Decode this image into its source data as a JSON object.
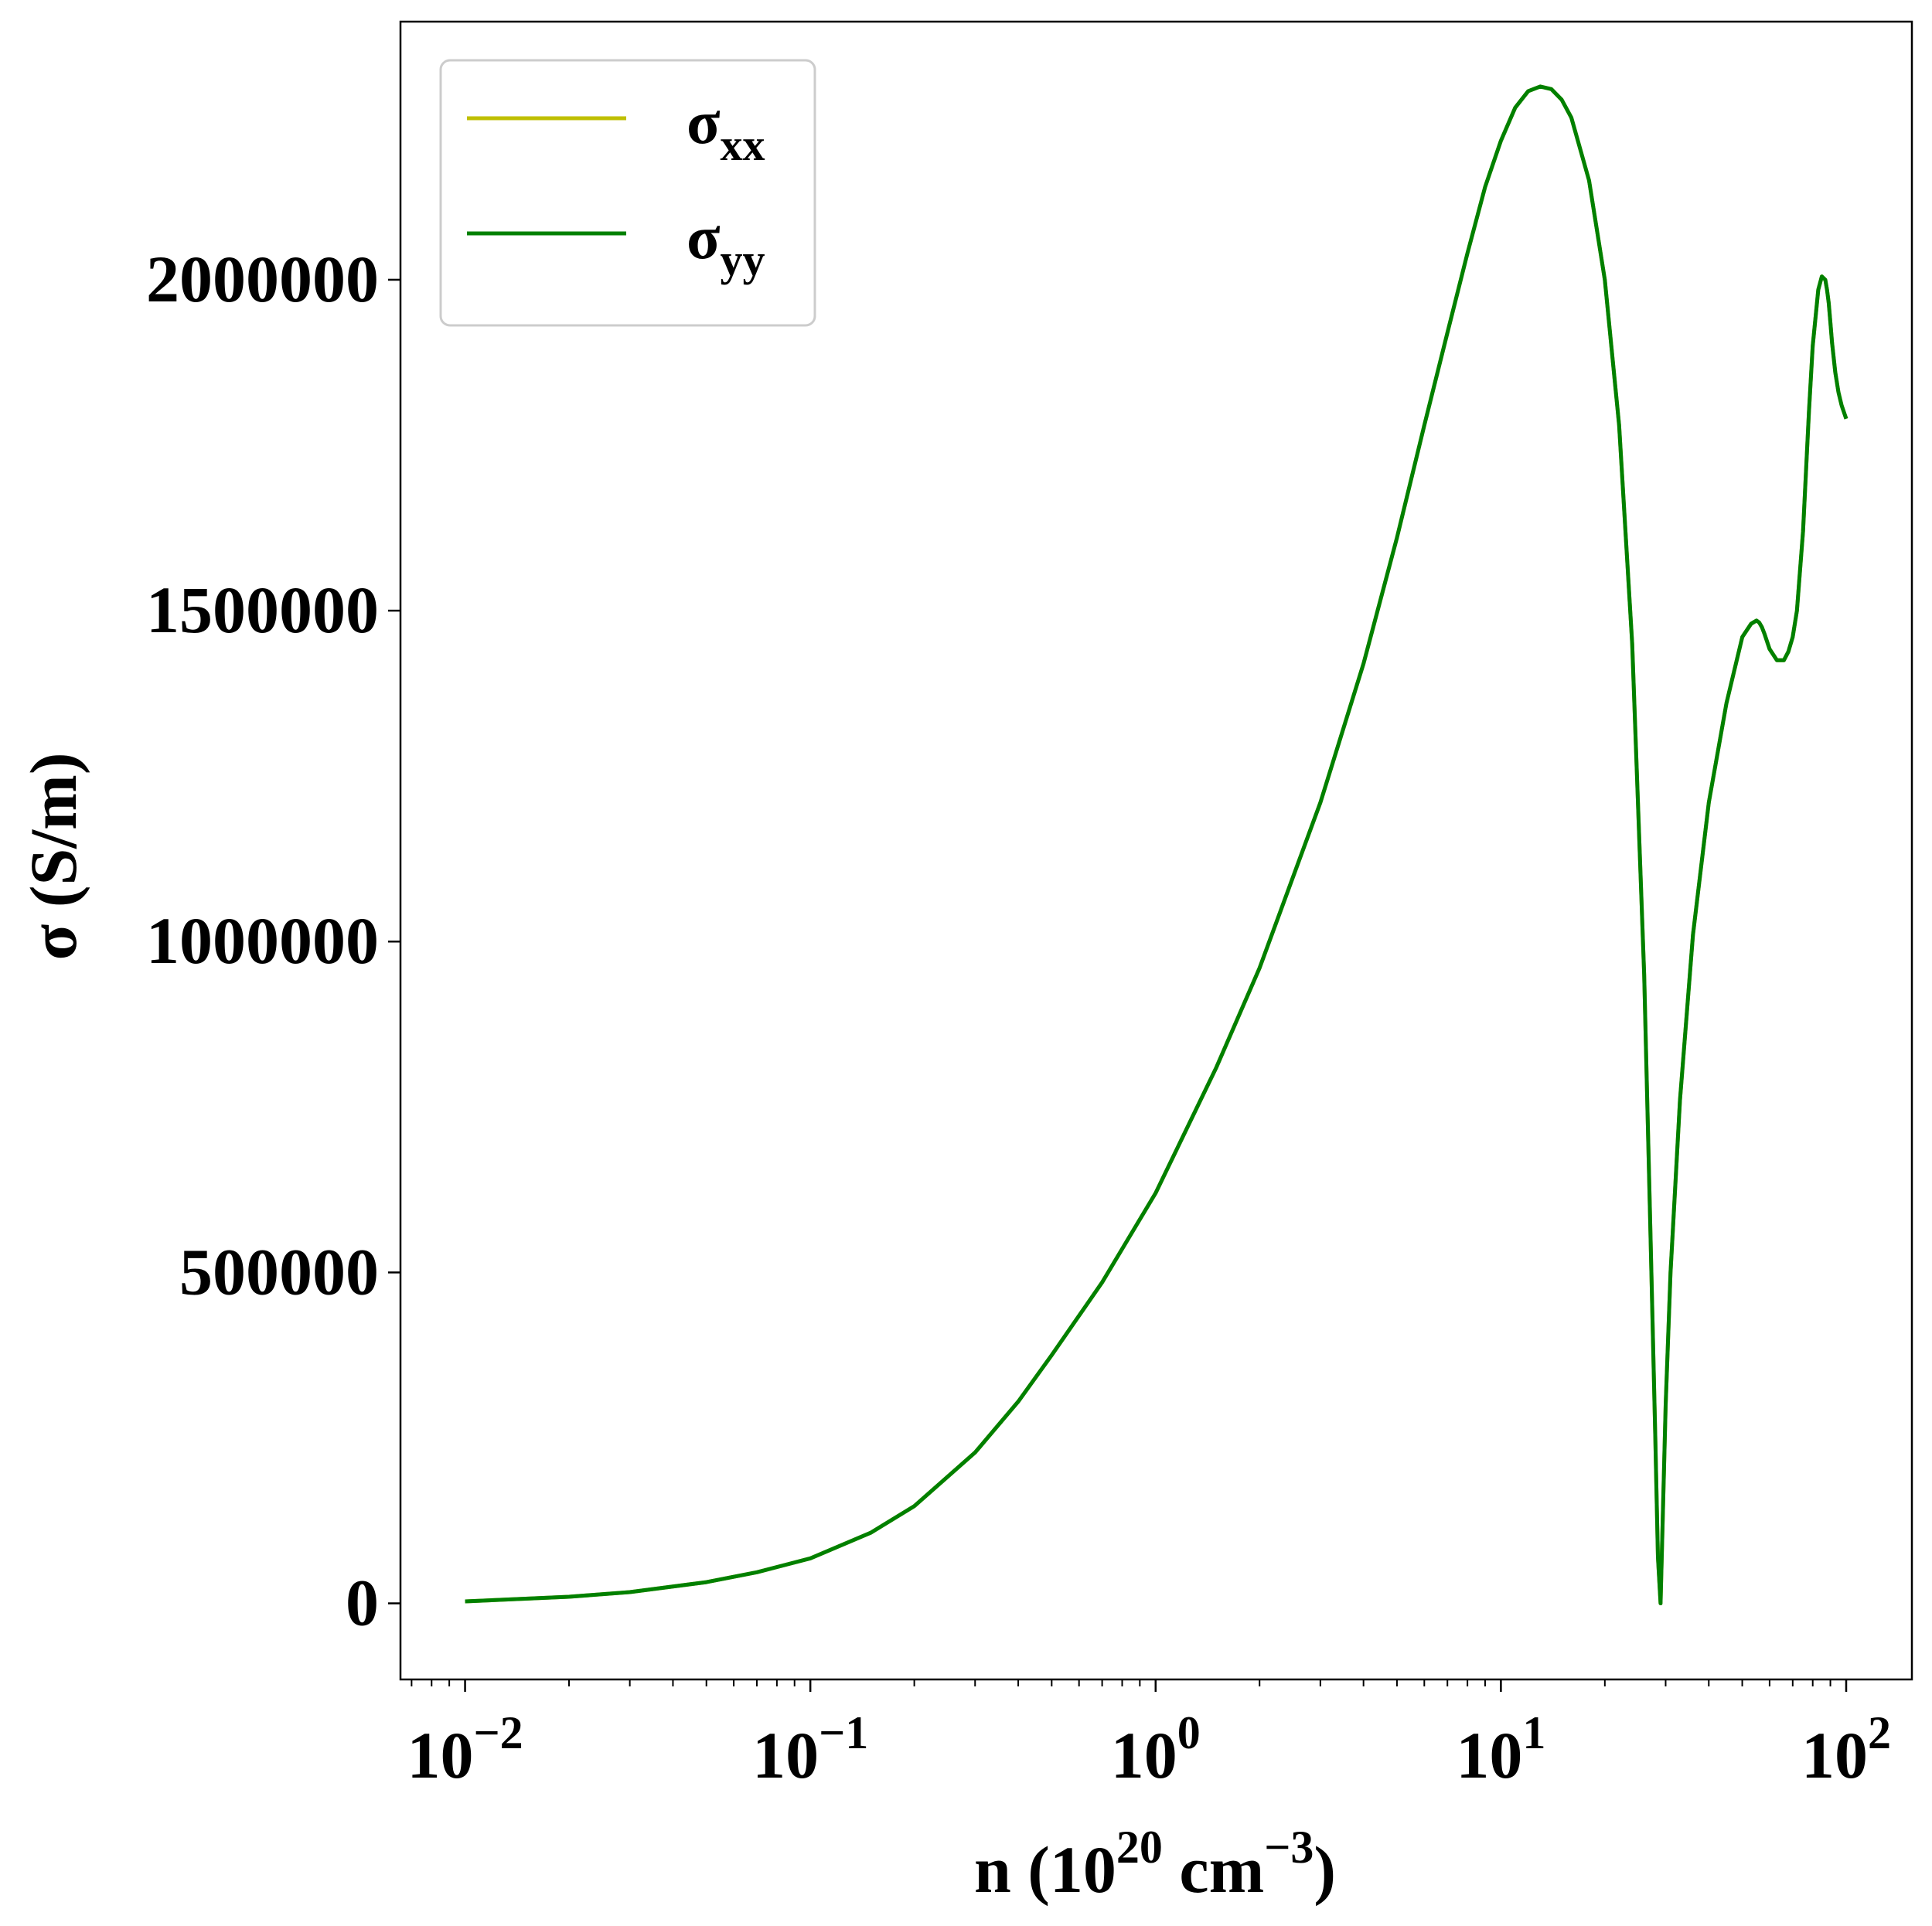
{
  "chart_data": {
    "type": "line",
    "x_scale": "log",
    "xlim": [
      0.0065,
      155
    ],
    "ylim": [
      -115000,
      2390000
    ],
    "xlabel": {
      "base": "n (10",
      "exp1": "20",
      "mid": " cm",
      "exp2": "−3",
      "end": ")"
    },
    "ylabel": "σ (S/m)",
    "x_ticks": [
      {
        "value": 0.01,
        "base": "10",
        "exp": "−2"
      },
      {
        "value": 0.1,
        "base": "10",
        "exp": "−1"
      },
      {
        "value": 1,
        "base": "10",
        "exp": "0"
      },
      {
        "value": 10,
        "base": "10",
        "exp": "1"
      },
      {
        "value": 100,
        "base": "10",
        "exp": "2"
      }
    ],
    "y_ticks": [
      {
        "value": 0,
        "label": "0"
      },
      {
        "value": 500000,
        "label": "500000"
      },
      {
        "value": 1000000,
        "label": "1000000"
      },
      {
        "value": 1500000,
        "label": "1500000"
      },
      {
        "value": 2000000,
        "label": "2000000"
      }
    ],
    "legend": {
      "position": "upper-left",
      "entries": [
        {
          "symbol": "σ",
          "sub": "xx",
          "color": "#bfbf00"
        },
        {
          "symbol": "σ",
          "sub": "yy",
          "color": "#008000"
        }
      ]
    },
    "series": [
      {
        "name": "σxx",
        "color": "#bfbf00",
        "x": [
          0.01,
          0.02,
          0.03,
          0.05,
          0.07,
          0.1,
          0.15,
          0.2,
          0.3,
          0.4,
          0.5,
          0.7,
          1,
          1.5,
          2,
          3,
          4,
          5,
          6,
          7,
          8,
          9,
          10,
          11,
          12,
          13,
          14,
          15,
          16,
          18,
          20,
          22,
          24,
          26,
          27,
          28,
          28.5,
          29,
          29.5,
          30,
          31,
          33,
          36,
          40,
          45,
          50,
          53,
          55,
          56,
          57,
          58,
          60,
          63,
          66,
          68,
          70,
          72,
          75,
          78,
          80,
          83,
          85,
          87,
          88,
          89,
          90,
          91,
          93,
          95,
          97,
          100
        ],
        "y": [
          3000,
          10000,
          17000,
          32000,
          47000,
          68000,
          107000,
          147000,
          228000,
          305000,
          375000,
          485000,
          620000,
          810000,
          960000,
          1210000,
          1420000,
          1610000,
          1780000,
          1920000,
          2040000,
          2140000,
          2210000,
          2260000,
          2285000,
          2292000,
          2288000,
          2272000,
          2245000,
          2150000,
          2000000,
          1780000,
          1450000,
          950000,
          600000,
          250000,
          70000,
          0,
          150000,
          300000,
          500000,
          760000,
          1010000,
          1210000,
          1360000,
          1460000,
          1480000,
          1485000,
          1482000,
          1475000,
          1465000,
          1442000,
          1425000,
          1425000,
          1438000,
          1460000,
          1500000,
          1620000,
          1800000,
          1900000,
          1985000,
          2005000,
          2000000,
          1985000,
          1965000,
          1935000,
          1905000,
          1860000,
          1830000,
          1810000,
          1790000
        ]
      },
      {
        "name": "σyy",
        "color": "#008000",
        "x": [
          0.01,
          0.02,
          0.03,
          0.05,
          0.07,
          0.1,
          0.15,
          0.2,
          0.3,
          0.4,
          0.5,
          0.7,
          1,
          1.5,
          2,
          3,
          4,
          5,
          6,
          7,
          8,
          9,
          10,
          11,
          12,
          13,
          14,
          15,
          16,
          18,
          20,
          22,
          24,
          26,
          27,
          28,
          28.5,
          29,
          29.5,
          30,
          31,
          33,
          36,
          40,
          45,
          50,
          53,
          55,
          56,
          57,
          58,
          60,
          63,
          66,
          68,
          70,
          72,
          75,
          78,
          80,
          83,
          85,
          87,
          88,
          89,
          90,
          91,
          93,
          95,
          97,
          100
        ],
        "y": [
          3000,
          10000,
          17000,
          32000,
          47000,
          68000,
          107000,
          147000,
          228000,
          305000,
          375000,
          485000,
          620000,
          810000,
          960000,
          1210000,
          1420000,
          1610000,
          1780000,
          1920000,
          2040000,
          2140000,
          2210000,
          2260000,
          2285000,
          2292000,
          2288000,
          2272000,
          2245000,
          2150000,
          2000000,
          1780000,
          1450000,
          950000,
          600000,
          250000,
          70000,
          0,
          150000,
          300000,
          500000,
          760000,
          1010000,
          1210000,
          1360000,
          1460000,
          1480000,
          1485000,
          1482000,
          1475000,
          1465000,
          1442000,
          1425000,
          1425000,
          1438000,
          1460000,
          1500000,
          1620000,
          1800000,
          1900000,
          1985000,
          2005000,
          2000000,
          1985000,
          1965000,
          1935000,
          1905000,
          1860000,
          1830000,
          1810000,
          1790000
        ]
      }
    ]
  }
}
